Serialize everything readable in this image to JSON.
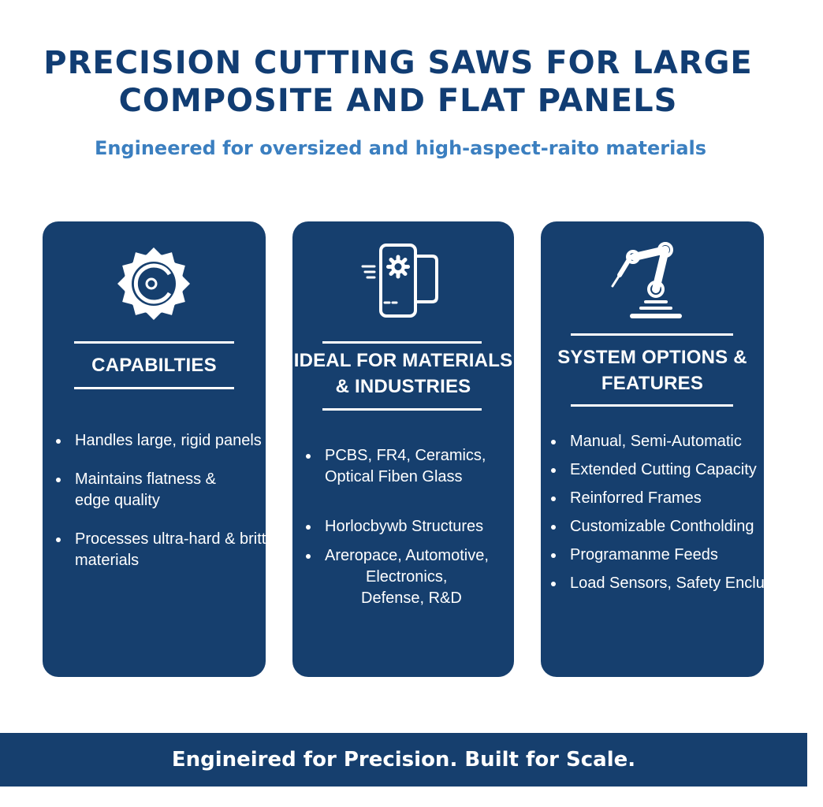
{
  "header": {
    "title_lines": [
      "PRECISION CUTTING SAWS FOR LARGE",
      "COMPOSITE AND FLAT PANELS"
    ],
    "subtitle": "Engineered for oversized and high-aspect-raito materials"
  },
  "colors": {
    "title": "#113d73",
    "subtitle": "#3b7fc0",
    "card": "#163f6e",
    "footer": "#163f6e",
    "text_on_dark": "#ffffff"
  },
  "cards": [
    {
      "icon": "circular-saw-blade-icon",
      "title_lines": [
        "CAPABILTIES"
      ],
      "items": [
        [
          "Handles large, rigid panels"
        ],
        [
          "Maintains flatness &",
          "edge quality"
        ],
        [
          "Processes ultra-hard & brittle",
          "materials"
        ]
      ]
    },
    {
      "icon": "device-gear-icon",
      "title_lines": [
        "IDEAL FOR MATERIALS",
        "& INDUSTRIES"
      ],
      "items": [
        [
          "PCBS, FR4, Ceramics,",
          "Optical Fiben Glass"
        ],
        [
          "Horlocbywb Structures"
        ],
        [
          "Areropace, Automotive,",
          "Electronics,",
          "Defense, R&D"
        ]
      ]
    },
    {
      "icon": "robotic-arm-icon",
      "title_lines": [
        "SYSTEM OPTIONS &",
        "FEATURES"
      ],
      "items": [
        [
          "Manual, Semi-Automatic"
        ],
        [
          "Extended Cutting Capacity"
        ],
        [
          "Reinforred Frames"
        ],
        [
          "Customizable Contholding"
        ],
        [
          "Programanme Feeds"
        ],
        [
          "Load Sensors, Safety Enclusres"
        ]
      ]
    }
  ],
  "footer": {
    "tagline": "Engineired for Precision. Built for Scale."
  }
}
